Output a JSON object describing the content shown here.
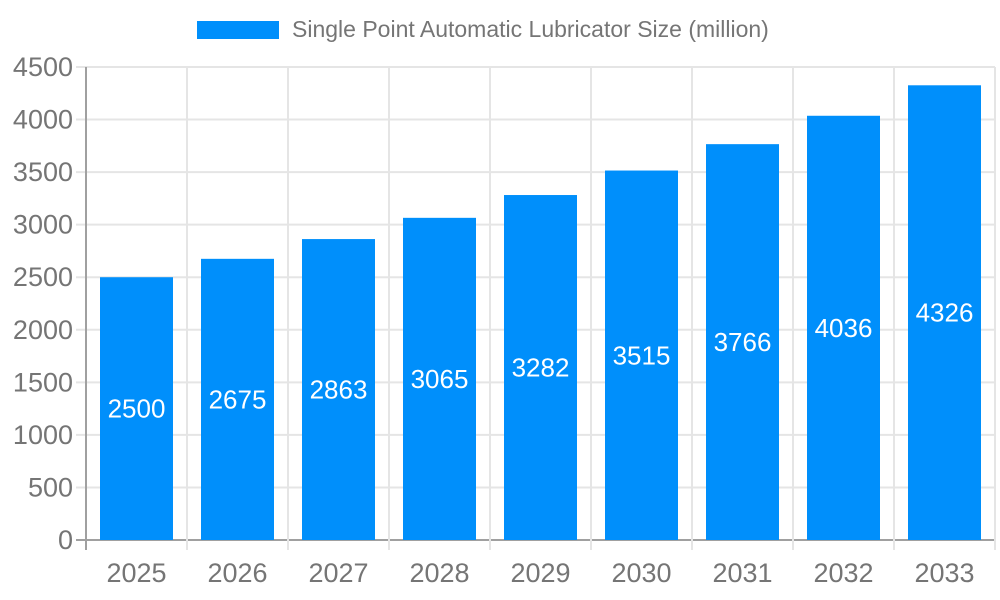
{
  "chart_data": {
    "type": "bar",
    "title": "",
    "legend": [
      "Single Point Automatic Lubricator Size (million)"
    ],
    "legend_position": "top",
    "categories": [
      "2025",
      "2026",
      "2027",
      "2028",
      "2029",
      "2030",
      "2031",
      "2032",
      "2033"
    ],
    "series": [
      {
        "name": "Single Point Automatic Lubricator Size (million)",
        "values": [
          2500,
          2675,
          2863,
          3065,
          3282,
          3515,
          3766,
          4036,
          4326
        ]
      }
    ],
    "data_labels_visible": true,
    "xlabel": "",
    "ylabel": "",
    "ylim": [
      0,
      4500
    ],
    "yticks": [
      0,
      500,
      1000,
      1500,
      2000,
      2500,
      3000,
      3500,
      4000,
      4500
    ],
    "grid": true,
    "colors": {
      "bar": "#008FFB",
      "tick_label": "#757575",
      "grid_line": "#e5e5e5",
      "axis_line": "#a0a0a0",
      "data_label": "#ffffff",
      "background": "#ffffff"
    }
  }
}
